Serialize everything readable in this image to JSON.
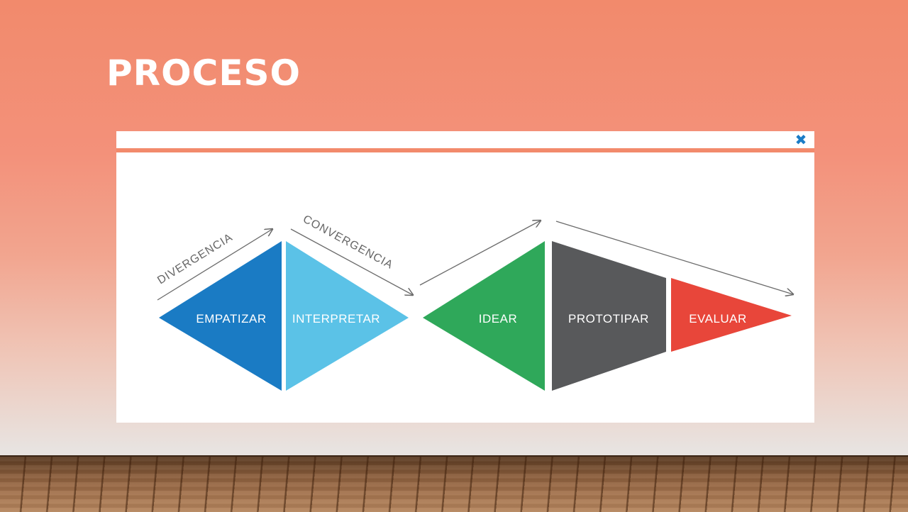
{
  "slide": {
    "title": "PROCESO"
  },
  "popup": {
    "close_glyph": "✖",
    "close_icon": "close-icon"
  },
  "diagram": {
    "stages": {
      "empatizar": {
        "label": "EMPATIZAR",
        "color": "#1a7bc4"
      },
      "interpretar": {
        "label": "INTERPRETAR",
        "color": "#5bc2e7"
      },
      "idear": {
        "label": "IDEAR",
        "color": "#2fa85a"
      },
      "prototipar": {
        "label": "PROTOTIPAR",
        "color": "#58595b"
      },
      "evaluar": {
        "label": "EVALUAR",
        "color": "#e8463a"
      }
    },
    "arrows": {
      "divergencia": "DIVERGENCIA",
      "convergencia": "CONVERGENCIA"
    },
    "arrow_color": "#6b6b6b"
  }
}
